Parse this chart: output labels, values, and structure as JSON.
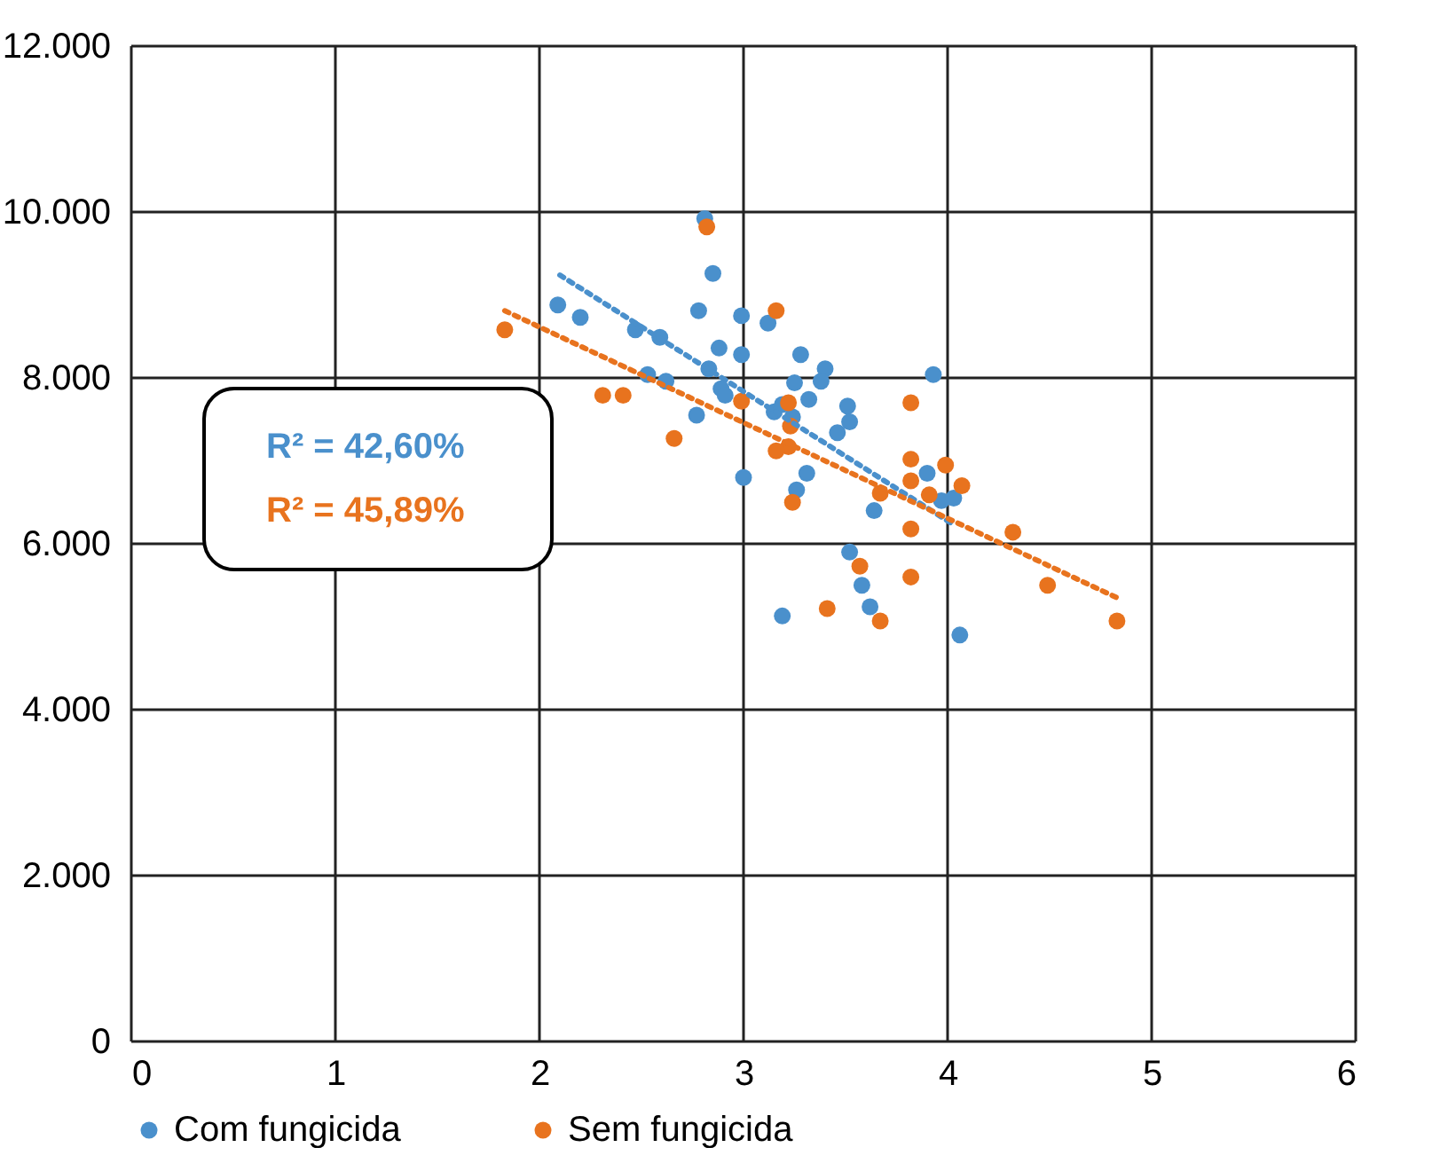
{
  "chart_data": {
    "type": "scatter",
    "xlim": [
      0,
      6
    ],
    "xticks": [
      0,
      1,
      2,
      3,
      4,
      5,
      6
    ],
    "ylim": [
      0,
      12000
    ],
    "yticks": [
      {
        "value": 0,
        "label": "0"
      },
      {
        "value": 2000,
        "label": "2.000"
      },
      {
        "value": 4000,
        "label": "4.000"
      },
      {
        "value": 6000,
        "label": "6.000"
      },
      {
        "value": 8000,
        "label": "8.000"
      },
      {
        "value": 10000,
        "label": "10.000"
      },
      {
        "value": 12000,
        "label": "12.000"
      }
    ],
    "grid": true,
    "legend": "bottom",
    "marker": "circle",
    "annotations": [
      "R² = 42,60%",
      "R² = 45,89%"
    ],
    "series": [
      {
        "name": "Com fungicida",
        "color": "#4a90cc",
        "x": [
          2.09,
          2.2,
          2.47,
          2.59,
          2.53,
          2.62,
          2.78,
          2.81,
          2.85,
          2.88,
          2.83,
          2.89,
          2.91,
          2.77,
          2.99,
          2.99,
          3.0,
          3.12,
          3.28,
          3.25,
          3.32,
          3.4,
          3.38,
          3.15,
          3.19,
          3.24,
          3.26,
          3.31,
          3.51,
          3.52,
          3.46,
          3.19,
          3.52,
          3.58,
          3.62,
          3.64,
          3.93,
          3.9,
          3.97,
          4.03,
          4.06
        ],
        "values": [
          8880,
          8730,
          8580,
          8490,
          8040,
          7960,
          8810,
          9920,
          9260,
          8360,
          8110,
          7870,
          7790,
          7550,
          8750,
          8280,
          6800,
          8660,
          8280,
          7940,
          7740,
          8110,
          7960,
          7590,
          7680,
          7530,
          6650,
          6850,
          7660,
          7470,
          7340,
          5130,
          5900,
          5500,
          5240,
          6400,
          8040,
          6850,
          6520,
          6550,
          4900
        ]
      },
      {
        "name": "Sem fungicida",
        "color": "#e8731e",
        "x": [
          1.83,
          2.82,
          3.16,
          2.31,
          2.41,
          2.66,
          2.99,
          3.22,
          3.23,
          3.22,
          3.16,
          3.24,
          3.82,
          3.82,
          3.82,
          3.82,
          3.82,
          3.99,
          4.07,
          3.91,
          3.67,
          3.57,
          3.41,
          3.67,
          4.32,
          4.49,
          4.83
        ],
        "values": [
          8580,
          9820,
          8810,
          7790,
          7790,
          7270,
          7720,
          7700,
          7420,
          7170,
          7120,
          6500,
          7700,
          7020,
          6760,
          6180,
          5600,
          6950,
          6700,
          6590,
          6610,
          5730,
          5220,
          5070,
          6140,
          5500,
          5070
        ]
      },
      {
        "color": "#4a90cc",
        "type": "line",
        "line_style": "dotted",
        "marker": "none",
        "x": [
          2.1,
          4.03
        ],
        "values": [
          9240,
          6230
        ]
      },
      {
        "color": "#e8731e",
        "type": "line",
        "line_style": "dotted",
        "marker": "none",
        "x": [
          1.83,
          4.83
        ],
        "values": [
          8810,
          5350
        ]
      }
    ]
  }
}
